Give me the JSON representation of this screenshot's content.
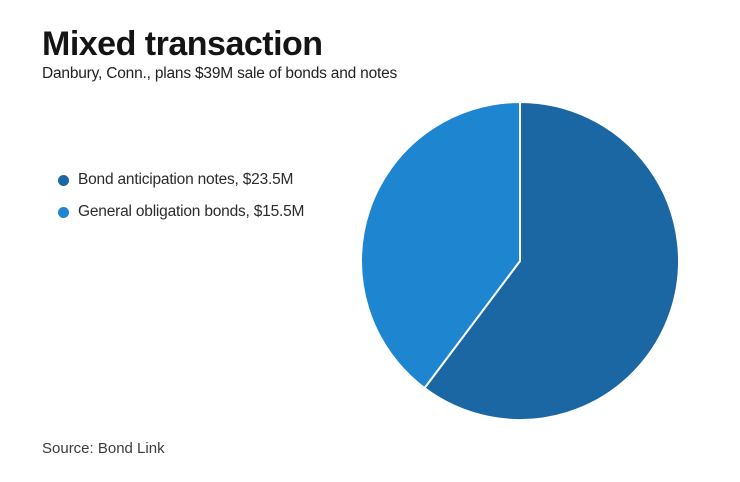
{
  "header": {
    "title": "Mixed transaction",
    "subtitle": "Danbury, Conn., plans $39M sale of bonds and notes"
  },
  "chart_data": {
    "type": "pie",
    "title": "Mixed transaction",
    "subtitle": "Danbury, Conn., plans $39M sale of bonds and notes",
    "units": "USD millions",
    "total": 39,
    "total_label": "$39M",
    "start_angle_deg": 0,
    "direction": "clockwise",
    "legend_position": "left",
    "divider_color": "#ffffff",
    "slices": [
      {
        "name": "Bond anticipation notes",
        "value": 23.5,
        "label": "Bond anticipation notes, $23.5M",
        "color": "#1b67a4"
      },
      {
        "name": "General obligation bonds",
        "value": 15.5,
        "label": "General obligation bonds, $15.5M",
        "color": "#1e86d1"
      }
    ]
  },
  "footer": {
    "source": "Source: Bond Link"
  }
}
